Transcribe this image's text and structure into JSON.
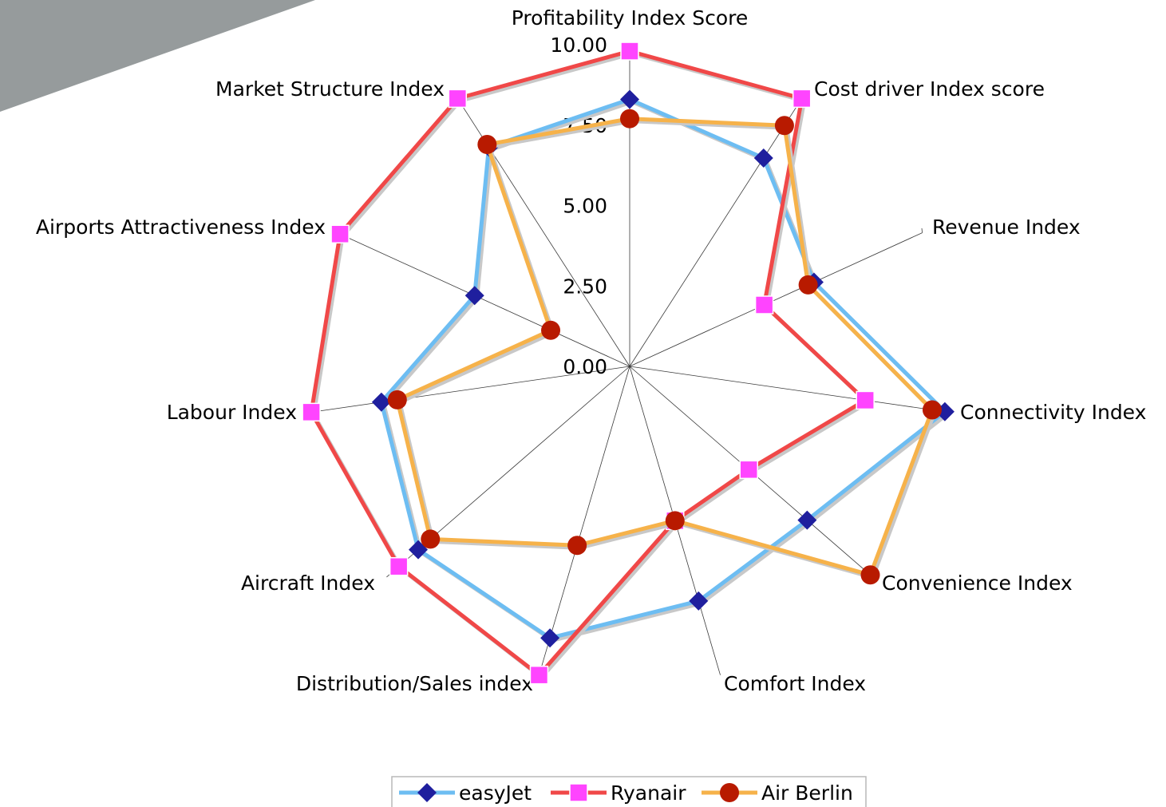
{
  "chart_data": {
    "type": "radar",
    "title": "",
    "axes": [
      "Profitability Index Score",
      "Cost driver Index score",
      "Revenue Index",
      "Connectivity Index",
      "Convenience Index",
      "Comfort Index",
      "Distribution/Sales index",
      "Aircraft Index",
      "Labour  Index",
      "Airports Attractiveness Index",
      "Market Structure Index"
    ],
    "rlim": [
      0,
      10
    ],
    "ticks": [
      "0.00",
      "2.50",
      "5.00",
      "7.50",
      "10.00"
    ],
    "grid": "spokes-only",
    "legend_position": "bottom",
    "series": [
      {
        "name": "easyJet",
        "color": "#6dbdf2",
        "marker": "diamond",
        "marker_color": "#1f1f9e",
        "values": [
          8.3,
          7.7,
          6.3,
          9.9,
          7.3,
          7.6,
          8.8,
          8.7,
          7.8,
          5.3,
          8.1
        ]
      },
      {
        "name": "Ryanair",
        "color": "#f04848",
        "marker": "square",
        "marker_color": "#ff44ff",
        "values": [
          9.8,
          9.9,
          4.6,
          7.4,
          4.9,
          5.0,
          10.0,
          9.5,
          10.0,
          9.9,
          9.9
        ]
      },
      {
        "name": "Air Berlin",
        "color": "#f6b24a",
        "marker": "circle",
        "marker_color": "#b81a00",
        "values": [
          7.7,
          8.9,
          6.1,
          9.5,
          9.9,
          5.0,
          5.8,
          8.2,
          7.3,
          2.7,
          8.2
        ]
      }
    ]
  }
}
